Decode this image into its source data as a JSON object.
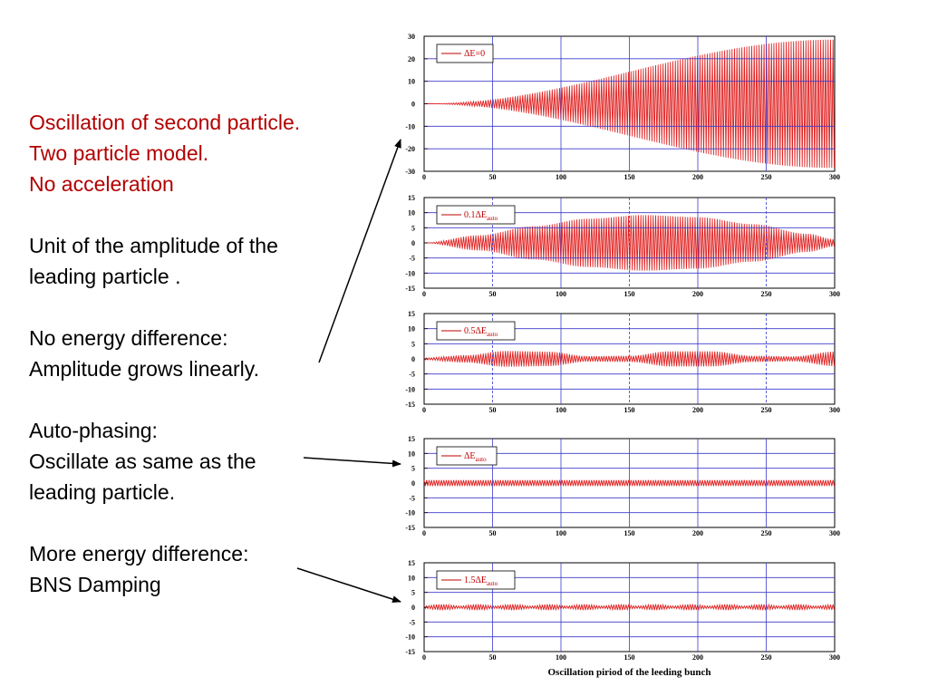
{
  "slide": {
    "red_lines": [
      "Oscillation of second particle.",
      "Two particle model.",
      "No acceleration"
    ],
    "para_unit": [
      "Unit of the amplitude of the",
      "leading particle ."
    ],
    "para_noenergy": [
      "No energy difference:",
      "Amplitude grows linearly."
    ],
    "para_auto": [
      "Auto-phasing:",
      "Oscillate as same as the",
      "leading particle."
    ],
    "para_more": [
      "More energy difference:",
      "BNS Damping"
    ],
    "text_color": "#000000",
    "heading_color": "#b30000"
  },
  "colors": {
    "signal": "#e02020",
    "grid": "#3a3acc",
    "legend": "#c00000",
    "arrow": "#000000"
  },
  "chart_data": [
    {
      "type": "line",
      "legend": {
        "prefix": "ΔE=0",
        "subscript": ""
      },
      "x": {
        "range": [
          0,
          300
        ],
        "ticks": [
          0,
          50,
          100,
          150,
          200,
          250,
          300
        ]
      },
      "y": {
        "range": [
          -30,
          30
        ],
        "ticks": [
          30,
          20,
          10,
          0,
          -10,
          -20,
          -30
        ]
      },
      "series": [
        {
          "values_description": "",
          "envelope": {
            "x": [
              0,
              300
            ],
            "amplitude": [
              0,
              28.5
            ]
          },
          "oscillation_period": 1.8
        }
      ],
      "grid": true,
      "legend_position": "top-left"
    },
    {
      "type": "line",
      "legend": {
        "prefix": "0.1ΔE",
        "subscript": "auto"
      },
      "x": {
        "range": [
          0,
          300
        ],
        "ticks": [
          0,
          50,
          100,
          150,
          200,
          250,
          300
        ]
      },
      "y": {
        "range": [
          -15,
          15
        ],
        "ticks": [
          15,
          10,
          5,
          0,
          -5,
          -10,
          -15
        ]
      },
      "series": [
        {
          "envelope": {
            "x": [
              0,
              40,
              80,
              120,
              160,
              200,
              240,
              280,
              300
            ],
            "amplitude": [
              0,
              2.5,
              5.5,
              8.0,
              9.2,
              8.5,
              6.2,
              3.0,
              1.2
            ]
          },
          "oscillation_period": 1.8
        }
      ],
      "grid": true,
      "legend_position": "top-left"
    },
    {
      "type": "line",
      "legend": {
        "prefix": "0.5ΔE",
        "subscript": "auto"
      },
      "x": {
        "range": [
          0,
          300
        ],
        "ticks": [
          0,
          50,
          100,
          150,
          200,
          250,
          300
        ]
      },
      "y": {
        "range": [
          -15,
          15
        ],
        "ticks": [
          15,
          10,
          5,
          0,
          -5,
          -10,
          -15
        ]
      },
      "series": [
        {
          "envelope": {
            "x": [
              0,
              30,
              60,
              90,
              120,
              150,
              180,
              210,
              240,
              270,
              300
            ],
            "amplitude": [
              0.3,
              1.2,
              2.6,
              2.4,
              0.9,
              1.0,
              2.5,
              2.5,
              1.0,
              0.8,
              2.4
            ]
          },
          "oscillation_period": 1.8
        }
      ],
      "grid": true,
      "legend_position": "top-left"
    },
    {
      "type": "line",
      "legend": {
        "prefix": "ΔE",
        "subscript": "auto"
      },
      "x": {
        "range": [
          0,
          300
        ],
        "ticks": [
          0,
          50,
          100,
          150,
          200,
          250,
          300
        ]
      },
      "y": {
        "range": [
          -15,
          15
        ],
        "ticks": [
          15,
          10,
          5,
          0,
          -5,
          -10,
          -15
        ]
      },
      "series": [
        {
          "envelope": {
            "x": [
              0,
              300
            ],
            "amplitude": [
              1.0,
              1.0
            ]
          },
          "oscillation_period": 1.8
        }
      ],
      "grid": true,
      "legend_position": "top-left"
    },
    {
      "type": "line",
      "legend": {
        "prefix": "1.5ΔE",
        "subscript": "auto"
      },
      "x": {
        "range": [
          0,
          300
        ],
        "ticks": [
          0,
          50,
          100,
          150,
          200,
          250,
          300
        ],
        "label": "Oscillation piriod of the leeding bunch"
      },
      "y": {
        "range": [
          -15,
          15
        ],
        "ticks": [
          15,
          10,
          5,
          0,
          -5,
          -10,
          -15
        ]
      },
      "series": [
        {
          "envelope": {
            "x": [
              0,
              13,
              26,
              39,
              52,
              65,
              78,
              91,
              104,
              117,
              130,
              143,
              156,
              169,
              182,
              195,
              208,
              221,
              234,
              247,
              260,
              273,
              286,
              300
            ],
            "amplitude": [
              0.4,
              1.0,
              0.4,
              1.0,
              0.4,
              1.0,
              0.4,
              1.0,
              0.4,
              1.0,
              0.4,
              1.0,
              0.4,
              1.0,
              0.4,
              1.0,
              0.4,
              1.0,
              0.4,
              1.0,
              0.4,
              1.0,
              0.4,
              0.9
            ]
          },
          "oscillation_period": 1.8
        }
      ],
      "grid": true,
      "legend_position": "top-left"
    }
  ]
}
